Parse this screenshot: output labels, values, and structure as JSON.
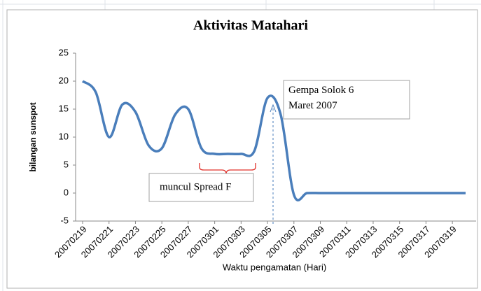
{
  "chart_data": {
    "type": "line",
    "title": "Aktivitas Matahari",
    "y_label": "bilangan sunspot",
    "x_label": "Waktu pengamatan  (Hari)",
    "categories": [
      "20070219",
      null,
      "20070221",
      null,
      "20070223",
      null,
      "20070225",
      null,
      "20070227",
      null,
      "20070301",
      null,
      "20070303",
      null,
      "20070305",
      null,
      "20070307",
      null,
      "20070309",
      null,
      "20070311",
      null,
      "20070313",
      null,
      "20070315",
      null,
      "20070317",
      null,
      "20070319",
      null
    ],
    "series": [
      {
        "name": "bilangan sunspot",
        "color": "#4a7ebb",
        "values": [
          20,
          18,
          10,
          15.8,
          14.5,
          8.5,
          8,
          14,
          15,
          8,
          7,
          7,
          7,
          7.5,
          17,
          14,
          -0.3,
          0,
          0,
          0,
          0,
          0,
          0,
          0,
          0,
          0,
          0,
          0,
          0,
          0
        ]
      }
    ],
    "ylim": [
      -5,
      25
    ],
    "yticks": [
      -5,
      0,
      5,
      10,
      15,
      20,
      25
    ],
    "grid": false,
    "annotations": [
      "Gempa Solok 6 Maret 2007",
      "muncul Spread F"
    ]
  }
}
